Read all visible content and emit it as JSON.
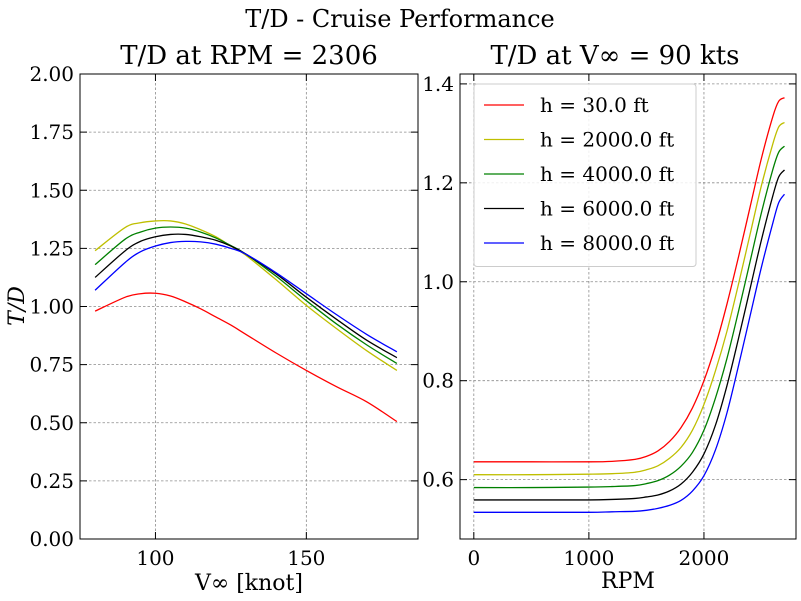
{
  "figure": {
    "suptitle": "T/D - Cruise Performance"
  },
  "chart_data": [
    {
      "type": "line",
      "title": "T/D at RPM = 2306",
      "xlabel": "V∞ [knot]",
      "ylabel": "T/D",
      "xlim": [
        75,
        187
      ],
      "ylim": [
        0,
        2
      ],
      "xticks": [
        100,
        150
      ],
      "yticks": [
        0,
        0.25,
        0.5,
        0.75,
        1.0,
        1.25,
        1.5,
        1.75,
        2.0
      ],
      "ytick_labels": [
        "0.00",
        "0.25",
        "0.50",
        "0.75",
        "1.00",
        "1.25",
        "1.50",
        "1.75",
        "2.00"
      ],
      "xtick_labels": [
        "100",
        "150"
      ],
      "grid": true,
      "x": [
        80,
        90,
        95,
        100,
        105,
        110,
        115,
        120,
        125,
        130,
        140,
        150,
        160,
        170,
        180
      ],
      "series": [
        {
          "name": "h = 30.0 ft",
          "color": "#ff0000",
          "values": [
            0.98,
            1.04,
            1.055,
            1.057,
            1.045,
            1.02,
            0.99,
            0.955,
            0.92,
            0.88,
            0.8,
            0.725,
            0.655,
            0.59,
            0.505
          ]
        },
        {
          "name": "h = 2000.0 ft",
          "color": "#bfbf00",
          "values": [
            1.24,
            1.34,
            1.36,
            1.368,
            1.368,
            1.355,
            1.33,
            1.3,
            1.26,
            1.22,
            1.115,
            1.005,
            0.905,
            0.81,
            0.725
          ]
        },
        {
          "name": "h = 4000.0 ft",
          "color": "#008000",
          "values": [
            1.18,
            1.29,
            1.32,
            1.337,
            1.342,
            1.337,
            1.32,
            1.295,
            1.262,
            1.225,
            1.13,
            1.025,
            0.925,
            0.835,
            0.755
          ]
        },
        {
          "name": "h = 6000.0 ft",
          "color": "#000000",
          "values": [
            1.125,
            1.24,
            1.28,
            1.3,
            1.31,
            1.31,
            1.3,
            1.285,
            1.26,
            1.225,
            1.14,
            1.04,
            0.945,
            0.855,
            0.78
          ]
        },
        {
          "name": "h = 8000.0 ft",
          "color": "#0000ff",
          "values": [
            1.07,
            1.19,
            1.235,
            1.26,
            1.275,
            1.28,
            1.278,
            1.268,
            1.25,
            1.225,
            1.145,
            1.055,
            0.965,
            0.88,
            0.805
          ]
        }
      ]
    },
    {
      "type": "line",
      "title": "T/D at V∞ = 90 kts",
      "xlabel": "RPM",
      "ylabel": "",
      "xlim": [
        -120,
        2800
      ],
      "ylim": [
        0.48,
        1.42
      ],
      "xticks": [
        0,
        1000,
        2000
      ],
      "yticks": [
        0.6,
        0.8,
        1.0,
        1.2,
        1.4
      ],
      "ytick_labels": [
        "0.6",
        "0.8",
        "1.0",
        "1.2",
        "1.4"
      ],
      "xtick_labels": [
        "0",
        "1000",
        "2000"
      ],
      "grid": true,
      "legend": "upper-left",
      "x": [
        0,
        500,
        1000,
        1200,
        1400,
        1500,
        1600,
        1700,
        1800,
        1900,
        2000,
        2100,
        2200,
        2300,
        2400,
        2500,
        2600,
        2650,
        2700
      ],
      "series": [
        {
          "name": "h = 30.0 ft",
          "color": "#ff0000",
          "values": [
            0.636,
            0.636,
            0.636,
            0.637,
            0.641,
            0.647,
            0.658,
            0.677,
            0.705,
            0.745,
            0.8,
            0.87,
            0.955,
            1.05,
            1.15,
            1.25,
            1.335,
            1.365,
            1.372
          ]
        },
        {
          "name": "h = 2000.0 ft",
          "color": "#bfbf00",
          "values": [
            0.61,
            0.61,
            0.611,
            0.612,
            0.615,
            0.62,
            0.628,
            0.643,
            0.665,
            0.7,
            0.752,
            0.82,
            0.9,
            0.995,
            1.095,
            1.195,
            1.28,
            1.313,
            1.322
          ]
        },
        {
          "name": "h = 4000.0 ft",
          "color": "#008000",
          "values": [
            0.584,
            0.584,
            0.585,
            0.586,
            0.588,
            0.592,
            0.598,
            0.609,
            0.627,
            0.655,
            0.7,
            0.765,
            0.845,
            0.94,
            1.04,
            1.14,
            1.228,
            1.262,
            1.274
          ]
        },
        {
          "name": "h = 6000.0 ft",
          "color": "#000000",
          "values": [
            0.559,
            0.559,
            0.559,
            0.56,
            0.562,
            0.565,
            0.569,
            0.577,
            0.591,
            0.615,
            0.652,
            0.71,
            0.79,
            0.885,
            0.985,
            1.085,
            1.175,
            1.212,
            1.226
          ]
        },
        {
          "name": "h = 8000.0 ft",
          "color": "#0000ff",
          "values": [
            0.534,
            0.534,
            0.534,
            0.535,
            0.536,
            0.538,
            0.542,
            0.548,
            0.558,
            0.577,
            0.608,
            0.66,
            0.735,
            0.83,
            0.93,
            1.03,
            1.12,
            1.16,
            1.177
          ]
        }
      ]
    }
  ]
}
